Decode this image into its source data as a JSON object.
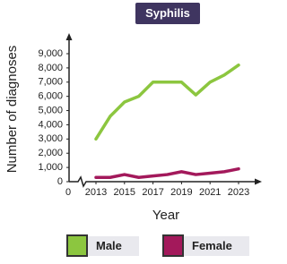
{
  "chart_data": {
    "type": "line",
    "title": "Syphilis",
    "y_label": "Number of diagnoses",
    "x_label": "Year",
    "x_origin_label": "0",
    "x": [
      2013,
      2014,
      2015,
      2016,
      2017,
      2018,
      2019,
      2020,
      2021,
      2022,
      2023
    ],
    "series": [
      {
        "name": "Male",
        "color": "#8cc63f",
        "values": [
          3000,
          4600,
          5600,
          6000,
          7000,
          7000,
          7000,
          6100,
          7000,
          7500,
          8200
        ]
      },
      {
        "name": "Female",
        "color": "#a3195b",
        "values": [
          300,
          300,
          500,
          300,
          400,
          500,
          700,
          500,
          600,
          700,
          900
        ]
      }
    ],
    "xlim": [
      2013,
      2023
    ],
    "xticks": [
      2013,
      2015,
      2017,
      2019,
      2021,
      2023
    ],
    "ylim": [
      0,
      9000
    ],
    "yticks": [
      0,
      {
        "value": 1000,
        "label": "1,000"
      },
      {
        "value": 2000,
        "label": "2,000"
      },
      {
        "value": 3000,
        "label": "3,000"
      },
      {
        "value": 4000,
        "label": "4,000"
      },
      {
        "value": 5000,
        "label": "5,000"
      },
      {
        "value": 6000,
        "label": "6,000"
      },
      {
        "value": 7000,
        "label": "7,000"
      },
      {
        "value": 8000,
        "label": "8,000"
      },
      {
        "value": 9000,
        "label": "9,000"
      }
    ]
  }
}
